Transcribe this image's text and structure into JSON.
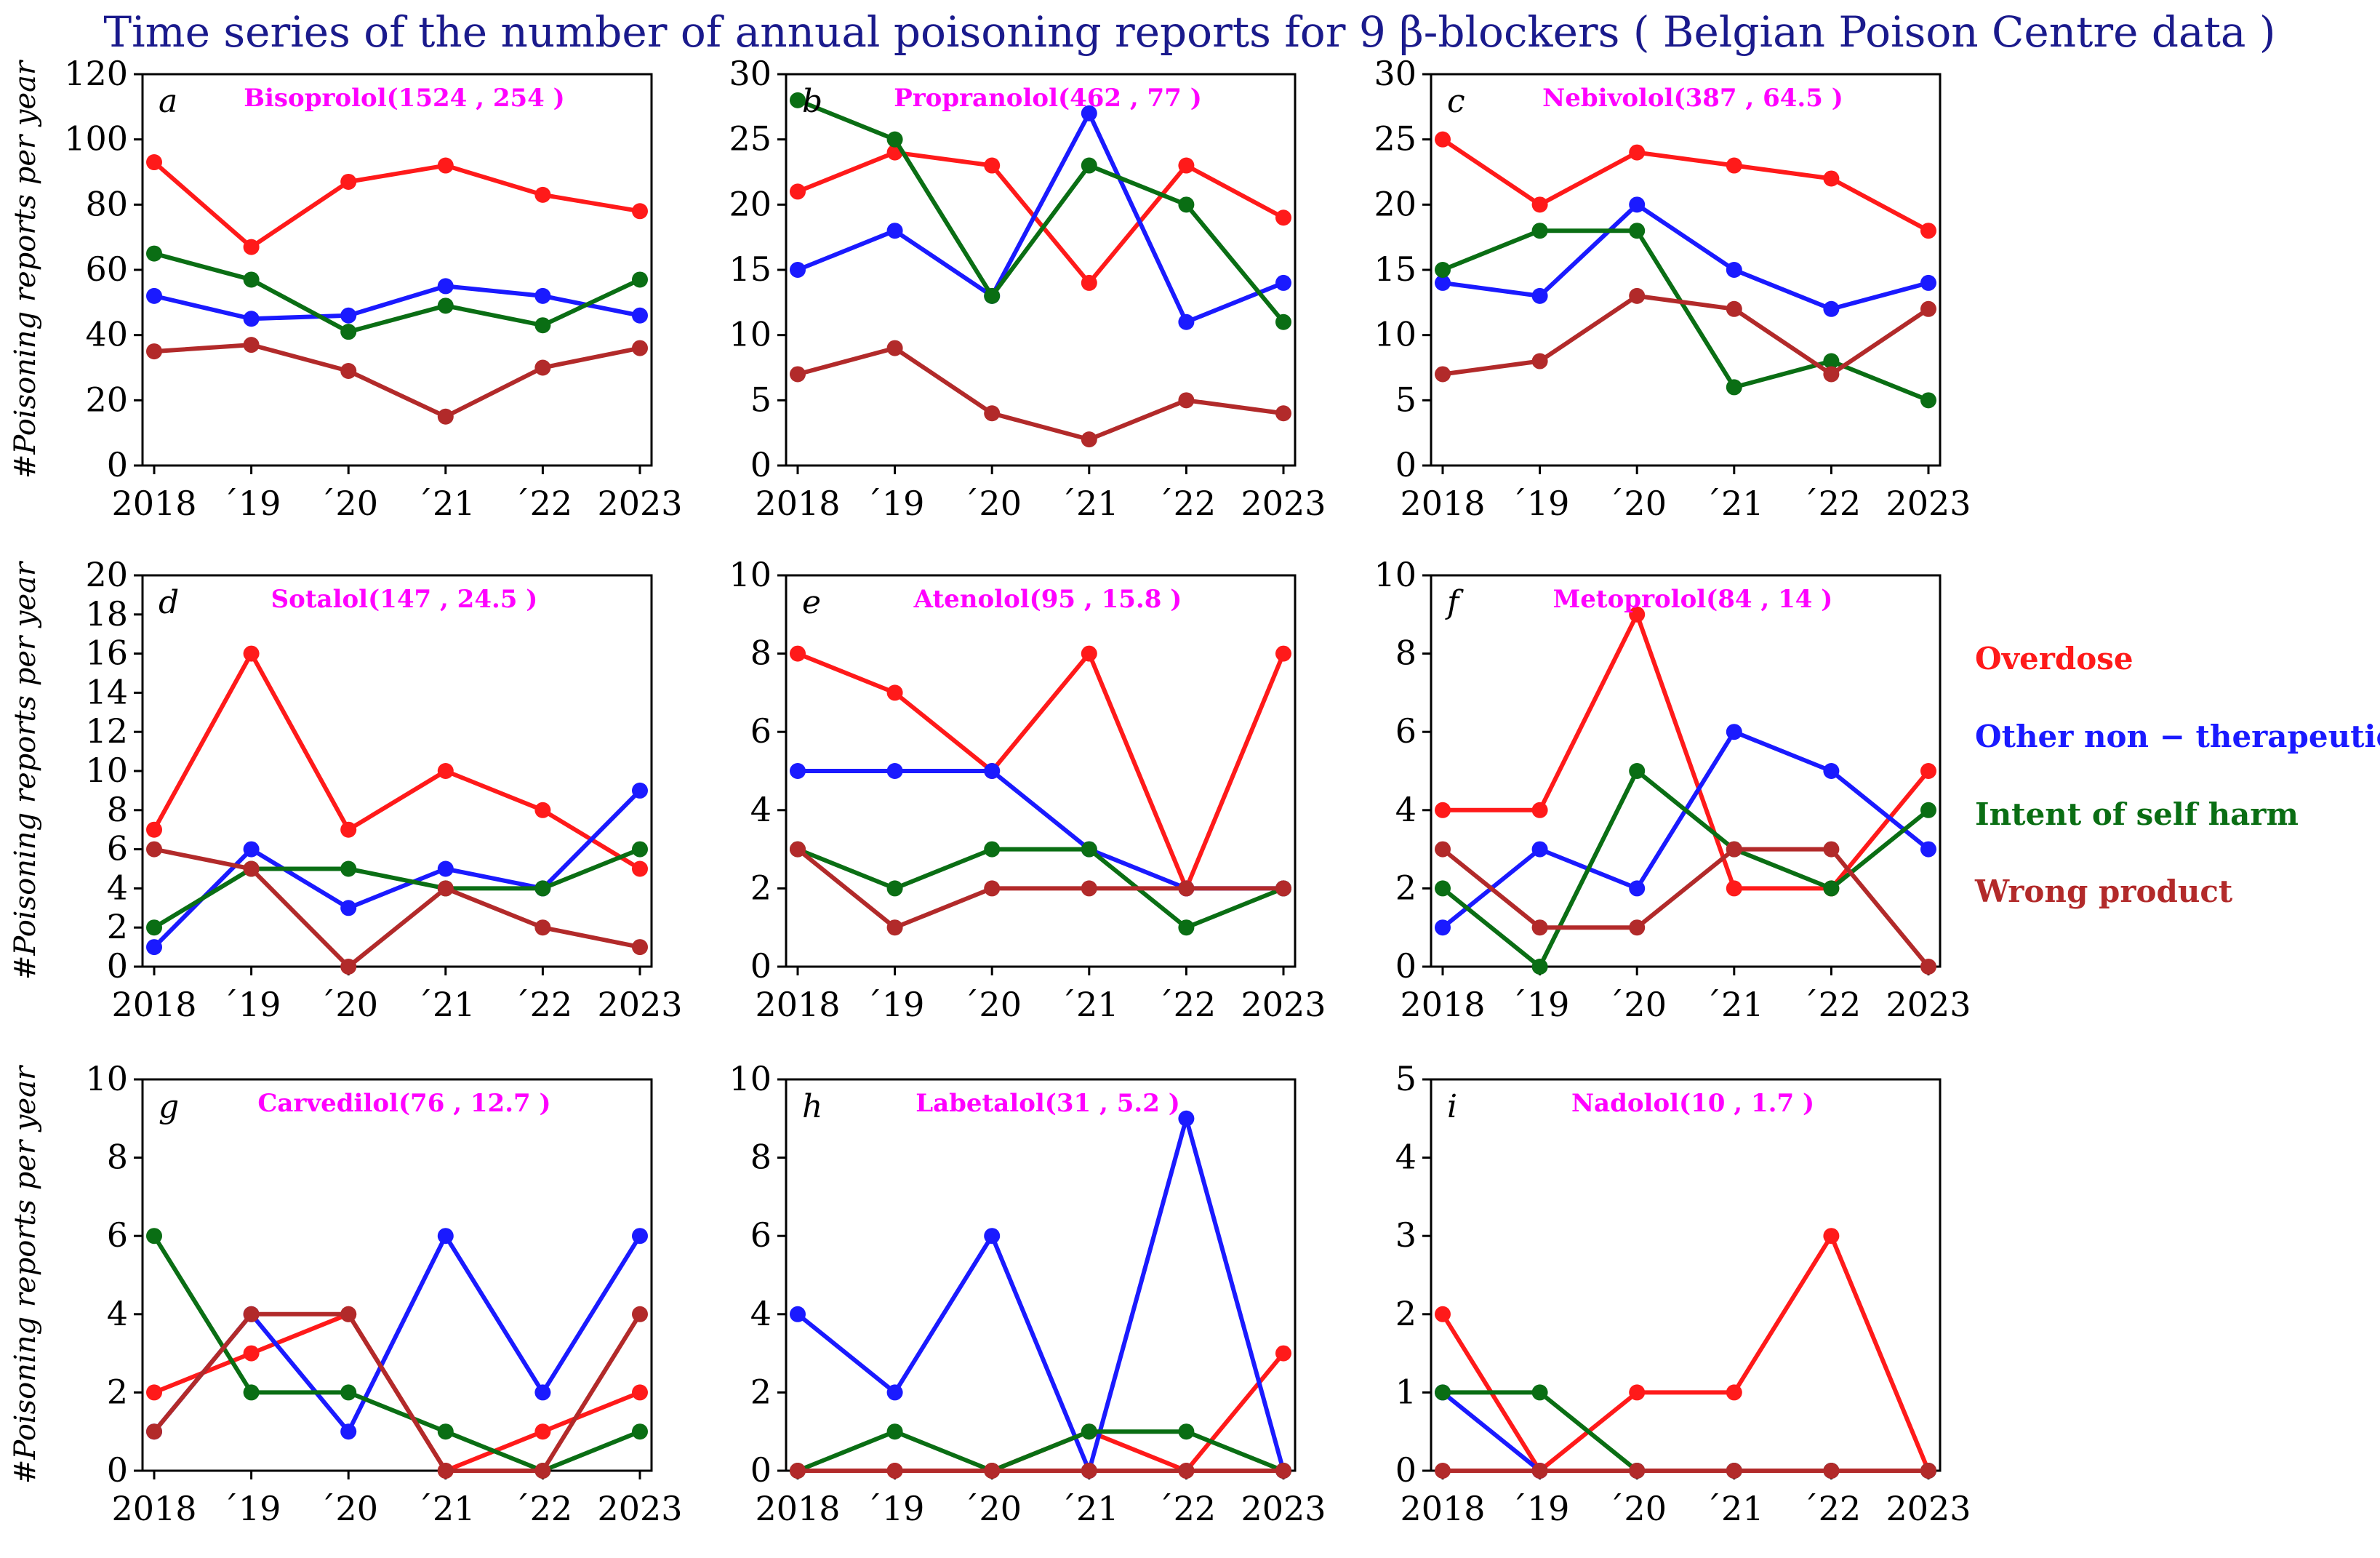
{
  "figure": {
    "title": "Time series of the number of annual poisoning reports for 9 β-blockers ( Belgian Poison Centre data )",
    "title_color": "#1a1a8c",
    "ylabel": "#Poisoning  reports  per  year",
    "subtitle_color": "#ff00ff"
  },
  "legend": [
    {
      "name": "Overdose",
      "color": "#ff1a1a"
    },
    {
      "name": "Other non − therapeutic",
      "color": "#1a1aff"
    },
    {
      "name": "Intent of self harm",
      "color": "#0a6e14"
    },
    {
      "name": "Wrong product",
      "color": "#b22a2a"
    }
  ],
  "chart_data": [
    {
      "type": "line",
      "letter": "a",
      "title": "Bisoprolol(1524 , 254 )",
      "x": [
        2018,
        2019,
        2020,
        2021,
        2022,
        2023
      ],
      "xticklabels": [
        "2018",
        "´19",
        "´20",
        "´21",
        "´22",
        "2023"
      ],
      "ylim": [
        0,
        120
      ],
      "yticks": [
        0,
        20,
        40,
        60,
        80,
        100,
        120
      ],
      "series": [
        {
          "name": "Overdose",
          "color": "#ff1a1a",
          "values": [
            93,
            67,
            87,
            92,
            83,
            78
          ]
        },
        {
          "name": "Other non − therapeutic",
          "color": "#1a1aff",
          "values": [
            52,
            45,
            46,
            55,
            52,
            46
          ]
        },
        {
          "name": "Intent of self harm",
          "color": "#0a6e14",
          "values": [
            65,
            57,
            41,
            49,
            43,
            57
          ]
        },
        {
          "name": "Wrong product",
          "color": "#b22a2a",
          "values": [
            35,
            37,
            29,
            15,
            30,
            36
          ]
        }
      ]
    },
    {
      "type": "line",
      "letter": "b",
      "title": "Propranolol(462 , 77 )",
      "x": [
        2018,
        2019,
        2020,
        2021,
        2022,
        2023
      ],
      "xticklabels": [
        "2018",
        "´19",
        "´20",
        "´21",
        "´22",
        "2023"
      ],
      "ylim": [
        0,
        30
      ],
      "yticks": [
        0,
        5,
        10,
        15,
        20,
        25,
        30
      ],
      "series": [
        {
          "name": "Overdose",
          "color": "#ff1a1a",
          "values": [
            21,
            24,
            23,
            14,
            23,
            19
          ]
        },
        {
          "name": "Other non − therapeutic",
          "color": "#1a1aff",
          "values": [
            15,
            18,
            13,
            27,
            11,
            14
          ]
        },
        {
          "name": "Intent of self harm",
          "color": "#0a6e14",
          "values": [
            28,
            25,
            13,
            23,
            20,
            11
          ]
        },
        {
          "name": "Wrong product",
          "color": "#b22a2a",
          "values": [
            7,
            9,
            4,
            2,
            5,
            4
          ]
        }
      ]
    },
    {
      "type": "line",
      "letter": "c",
      "title": "Nebivolol(387 , 64.5 )",
      "x": [
        2018,
        2019,
        2020,
        2021,
        2022,
        2023
      ],
      "xticklabels": [
        "2018",
        "´19",
        "´20",
        "´21",
        "´22",
        "2023"
      ],
      "ylim": [
        0,
        30
      ],
      "yticks": [
        0,
        5,
        10,
        15,
        20,
        25,
        30
      ],
      "series": [
        {
          "name": "Overdose",
          "color": "#ff1a1a",
          "values": [
            25,
            20,
            24,
            23,
            22,
            18
          ]
        },
        {
          "name": "Other non − therapeutic",
          "color": "#1a1aff",
          "values": [
            14,
            13,
            20,
            15,
            12,
            14
          ]
        },
        {
          "name": "Intent of self harm",
          "color": "#0a6e14",
          "values": [
            15,
            18,
            18,
            6,
            8,
            5
          ]
        },
        {
          "name": "Wrong product",
          "color": "#b22a2a",
          "values": [
            7,
            8,
            13,
            12,
            7,
            12
          ]
        }
      ]
    },
    {
      "type": "line",
      "letter": "d",
      "title": "Sotalol(147 , 24.5 )",
      "x": [
        2018,
        2019,
        2020,
        2021,
        2022,
        2023
      ],
      "xticklabels": [
        "2018",
        "´19",
        "´20",
        "´21",
        "´22",
        "2023"
      ],
      "ylim": [
        0,
        20
      ],
      "yticks": [
        0,
        2,
        4,
        6,
        8,
        10,
        12,
        14,
        16,
        18,
        20
      ],
      "series": [
        {
          "name": "Overdose",
          "color": "#ff1a1a",
          "values": [
            7,
            16,
            7,
            10,
            8,
            5
          ]
        },
        {
          "name": "Other non − therapeutic",
          "color": "#1a1aff",
          "values": [
            1,
            6,
            3,
            5,
            4,
            9
          ]
        },
        {
          "name": "Intent of self harm",
          "color": "#0a6e14",
          "values": [
            2,
            5,
            5,
            4,
            4,
            6
          ]
        },
        {
          "name": "Wrong product",
          "color": "#b22a2a",
          "values": [
            6,
            5,
            0,
            4,
            2,
            1
          ]
        }
      ]
    },
    {
      "type": "line",
      "letter": "e",
      "title": "Atenolol(95 , 15.8 )",
      "x": [
        2018,
        2019,
        2020,
        2021,
        2022,
        2023
      ],
      "xticklabels": [
        "2018",
        "´19",
        "´20",
        "´21",
        "´22",
        "2023"
      ],
      "ylim": [
        0,
        10
      ],
      "yticks": [
        0,
        2,
        4,
        6,
        8,
        10
      ],
      "series": [
        {
          "name": "Overdose",
          "color": "#ff1a1a",
          "values": [
            8,
            7,
            5,
            8,
            2,
            8
          ]
        },
        {
          "name": "Other non − therapeutic",
          "color": "#1a1aff",
          "values": [
            5,
            5,
            5,
            3,
            2,
            2
          ]
        },
        {
          "name": "Intent of self harm",
          "color": "#0a6e14",
          "values": [
            3,
            2,
            3,
            3,
            1,
            2
          ]
        },
        {
          "name": "Wrong product",
          "color": "#b22a2a",
          "values": [
            3,
            1,
            2,
            2,
            2,
            2
          ]
        }
      ]
    },
    {
      "type": "line",
      "letter": "f",
      "title": "Metoprolol(84 , 14 )",
      "x": [
        2018,
        2019,
        2020,
        2021,
        2022,
        2023
      ],
      "xticklabels": [
        "2018",
        "´19",
        "´20",
        "´21",
        "´22",
        "2023"
      ],
      "ylim": [
        0,
        10
      ],
      "yticks": [
        0,
        2,
        4,
        6,
        8,
        10
      ],
      "series": [
        {
          "name": "Overdose",
          "color": "#ff1a1a",
          "values": [
            4,
            4,
            9,
            2,
            2,
            5
          ]
        },
        {
          "name": "Other non − therapeutic",
          "color": "#1a1aff",
          "values": [
            1,
            3,
            2,
            6,
            5,
            3
          ]
        },
        {
          "name": "Intent of self harm",
          "color": "#0a6e14",
          "values": [
            2,
            0,
            5,
            3,
            2,
            4
          ]
        },
        {
          "name": "Wrong product",
          "color": "#b22a2a",
          "values": [
            3,
            1,
            1,
            3,
            3,
            0
          ]
        }
      ]
    },
    {
      "type": "line",
      "letter": "g",
      "title": "Carvedilol(76 , 12.7 )",
      "x": [
        2018,
        2019,
        2020,
        2021,
        2022,
        2023
      ],
      "xticklabels": [
        "2018",
        "´19",
        "´20",
        "´21",
        "´22",
        "2023"
      ],
      "ylim": [
        0,
        10
      ],
      "yticks": [
        0,
        2,
        4,
        6,
        8,
        10
      ],
      "series": [
        {
          "name": "Overdose",
          "color": "#ff1a1a",
          "values": [
            2,
            3,
            4,
            0,
            1,
            2
          ]
        },
        {
          "name": "Other non − therapeutic",
          "color": "#1a1aff",
          "values": [
            1,
            4,
            1,
            6,
            2,
            6
          ]
        },
        {
          "name": "Intent of self harm",
          "color": "#0a6e14",
          "values": [
            6,
            2,
            2,
            1,
            0,
            1
          ]
        },
        {
          "name": "Wrong product",
          "color": "#b22a2a",
          "values": [
            1,
            4,
            4,
            0,
            0,
            4
          ]
        }
      ]
    },
    {
      "type": "line",
      "letter": "h",
      "title": "Labetalol(31 , 5.2 )",
      "x": [
        2018,
        2019,
        2020,
        2021,
        2022,
        2023
      ],
      "xticklabels": [
        "2018",
        "´19",
        "´20",
        "´21",
        "´22",
        "2023"
      ],
      "ylim": [
        0,
        10
      ],
      "yticks": [
        0,
        2,
        4,
        6,
        8,
        10
      ],
      "series": [
        {
          "name": "Overdose",
          "color": "#ff1a1a",
          "values": [
            0,
            0,
            0,
            1,
            0,
            3
          ]
        },
        {
          "name": "Other non − therapeutic",
          "color": "#1a1aff",
          "values": [
            4,
            2,
            6,
            0,
            9,
            0
          ]
        },
        {
          "name": "Intent of self harm",
          "color": "#0a6e14",
          "values": [
            0,
            1,
            0,
            1,
            1,
            0
          ]
        },
        {
          "name": "Wrong product",
          "color": "#b22a2a",
          "values": [
            0,
            0,
            0,
            0,
            0,
            0
          ]
        }
      ]
    },
    {
      "type": "line",
      "letter": "i",
      "title": "Nadolol(10 , 1.7 )",
      "x": [
        2018,
        2019,
        2020,
        2021,
        2022,
        2023
      ],
      "xticklabels": [
        "2018",
        "´19",
        "´20",
        "´21",
        "´22",
        "2023"
      ],
      "ylim": [
        0,
        5
      ],
      "yticks": [
        0,
        1,
        2,
        3,
        4,
        5
      ],
      "series": [
        {
          "name": "Overdose",
          "color": "#ff1a1a",
          "values": [
            2,
            0,
            1,
            1,
            3,
            0
          ]
        },
        {
          "name": "Other non − therapeutic",
          "color": "#1a1aff",
          "values": [
            1,
            0,
            0,
            0,
            0,
            0
          ]
        },
        {
          "name": "Intent of self harm",
          "color": "#0a6e14",
          "values": [
            1,
            1,
            0,
            0,
            0,
            0
          ]
        },
        {
          "name": "Wrong product",
          "color": "#b22a2a",
          "values": [
            0,
            0,
            0,
            0,
            0,
            0
          ]
        }
      ]
    }
  ]
}
